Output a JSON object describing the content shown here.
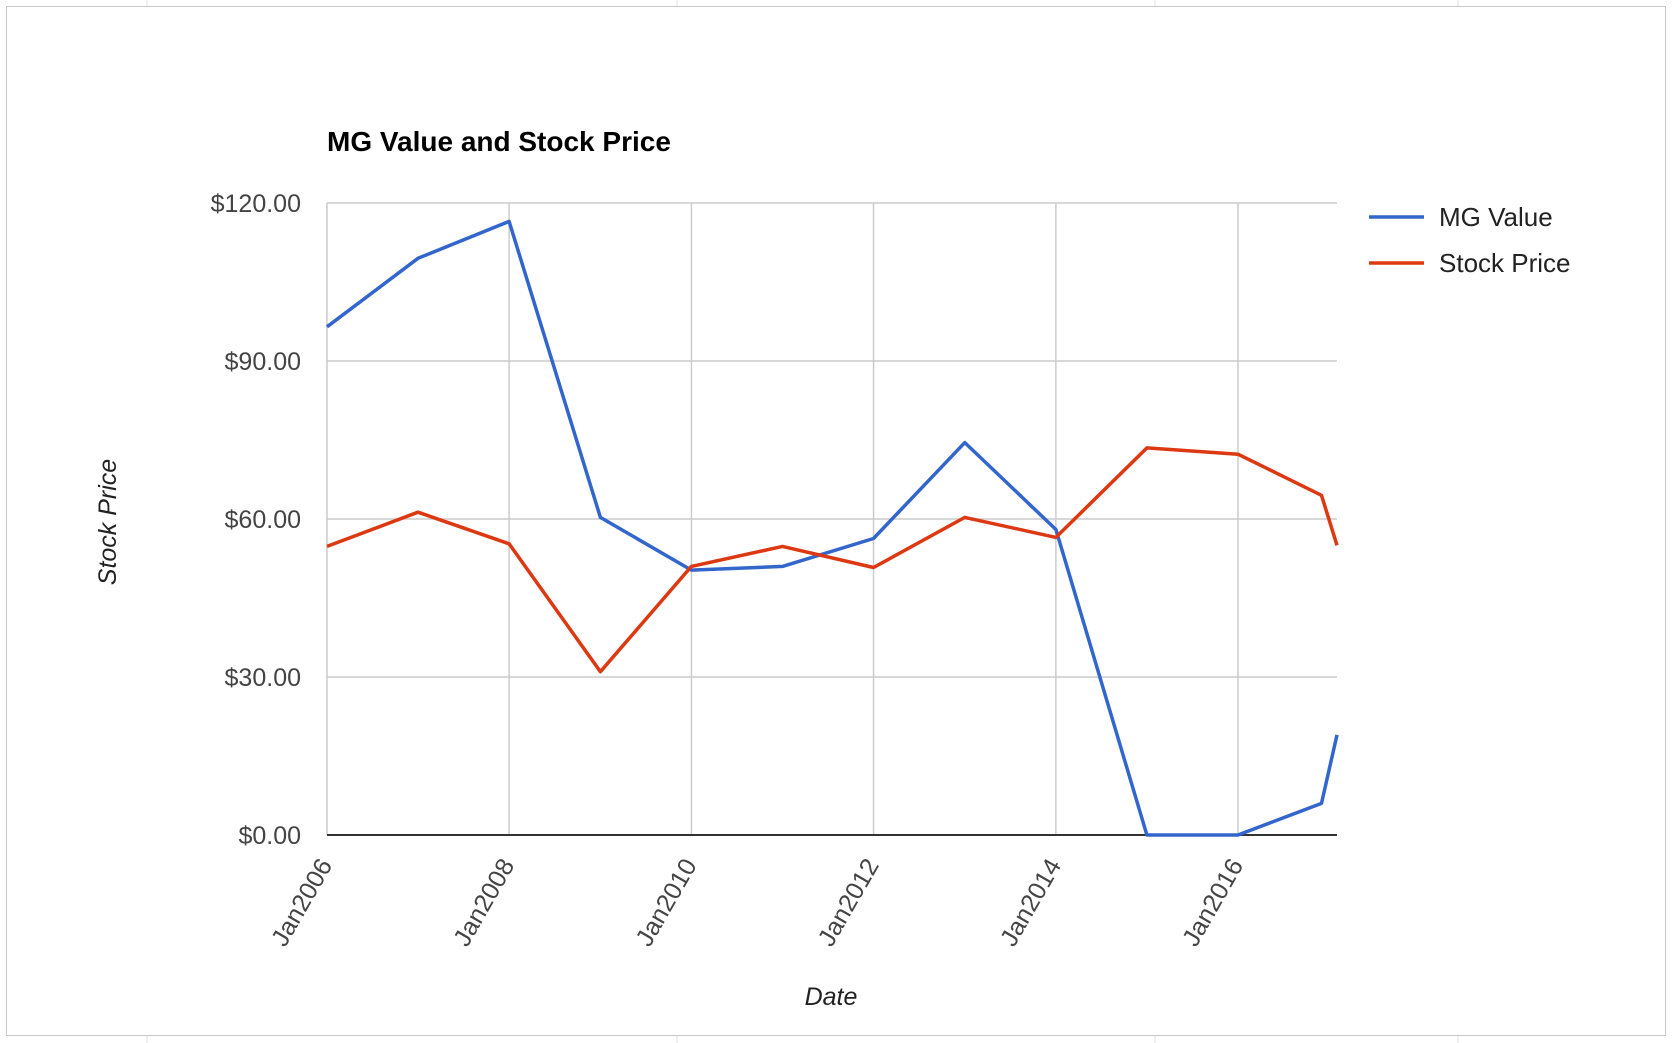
{
  "chart_data": {
    "type": "line",
    "title": "MG Value and Stock Price",
    "xlabel": "Date",
    "ylabel": "Stock Price",
    "x": [
      "2006-01",
      "2007-01",
      "2008-01",
      "2009-01",
      "2010-01",
      "2011-01",
      "2012-01",
      "2013-01",
      "2014-01",
      "2015-01",
      "2016-01",
      "2016-12",
      "2017-02"
    ],
    "x_ticks": [
      "Jan2006",
      "Jan2008",
      "Jan2010",
      "Jan2012",
      "Jan2014",
      "Jan2016"
    ],
    "y_ticks": [
      "$0.00",
      "$30.00",
      "$60.00",
      "$90.00",
      "$120.00"
    ],
    "ylim": [
      0,
      120
    ],
    "grid": true,
    "legend_position": "right",
    "series": [
      {
        "name": "MG Value",
        "color": "#3366cc",
        "values": [
          96.5,
          109.5,
          116.5,
          60.3,
          50.3,
          51.0,
          56.3,
          74.5,
          58.0,
          0.0,
          0.0,
          6.0,
          19.0
        ]
      },
      {
        "name": "Stock Price",
        "color": "#dc3912",
        "values": [
          54.8,
          61.3,
          55.3,
          31.0,
          51.0,
          54.8,
          50.8,
          60.3,
          56.5,
          73.5,
          72.3,
          64.5,
          55.0
        ]
      }
    ]
  }
}
